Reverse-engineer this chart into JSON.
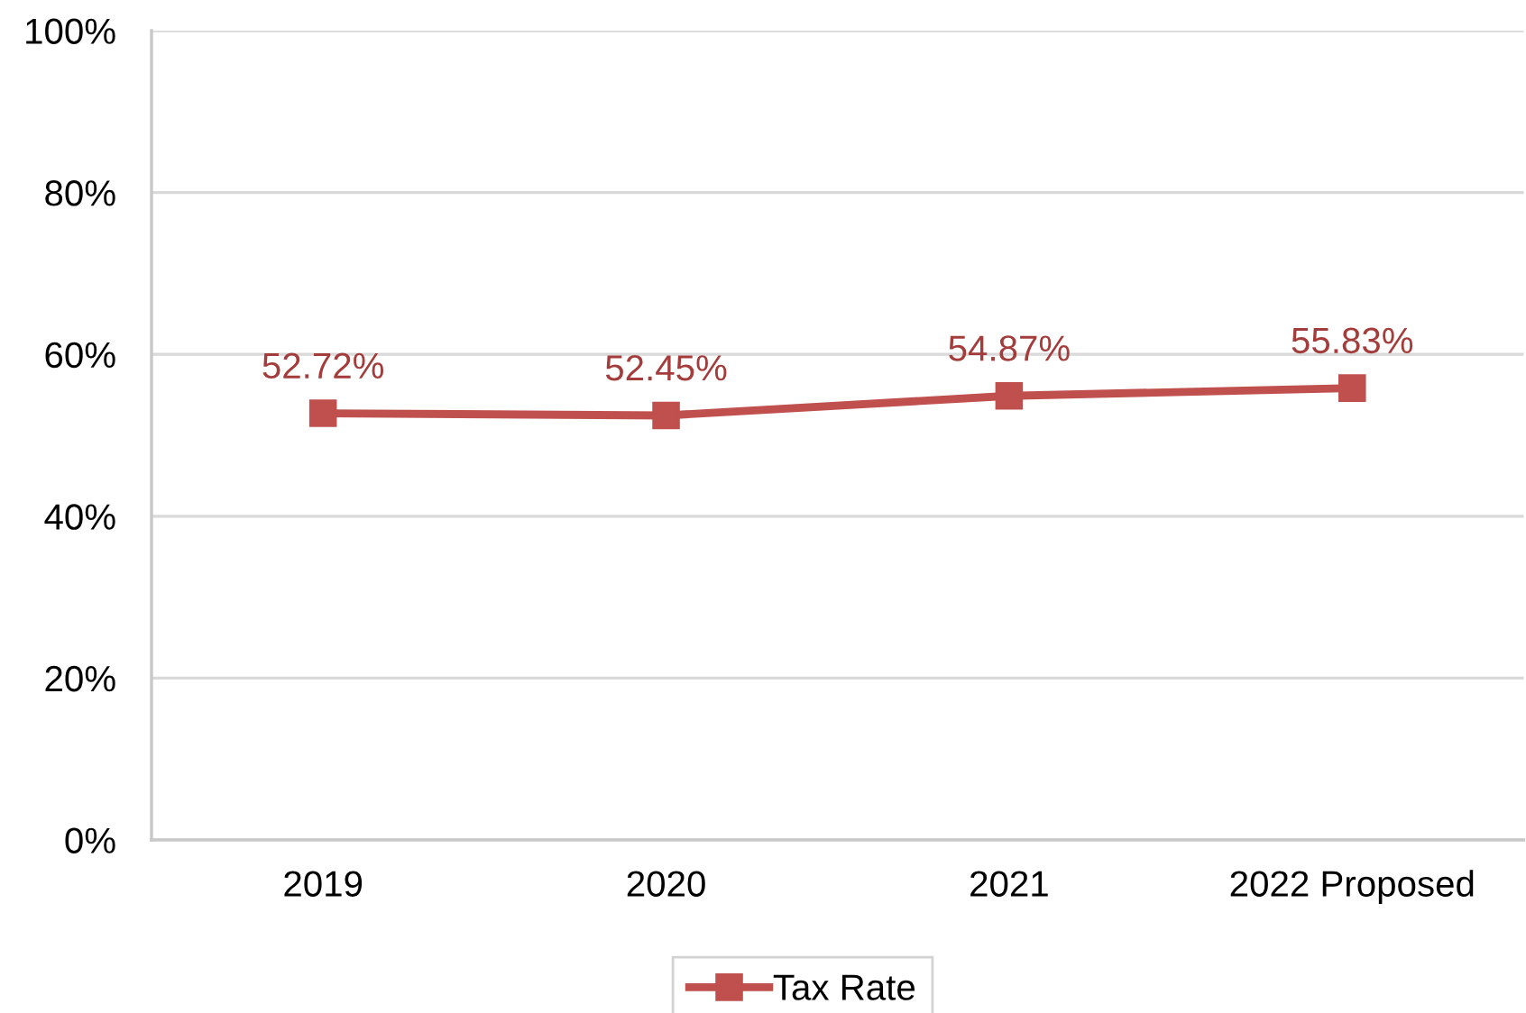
{
  "chart_data": {
    "type": "line",
    "categories": [
      "2019",
      "2020",
      "2021",
      "2022 Proposed"
    ],
    "series": [
      {
        "name": "Tax Rate",
        "color": "#c0504d",
        "values": [
          52.72,
          52.45,
          54.87,
          55.83
        ],
        "value_labels": [
          "52.72%",
          "52.45%",
          "54.87%",
          "55.83%"
        ]
      }
    ],
    "ylim": [
      0,
      100
    ],
    "yticks": [
      {
        "value": 0,
        "label": "0%"
      },
      {
        "value": 20,
        "label": "20%"
      },
      {
        "value": 40,
        "label": "40%"
      },
      {
        "value": 60,
        "label": "60%"
      },
      {
        "value": 80,
        "label": "80%"
      },
      {
        "value": 100,
        "label": "100%"
      }
    ],
    "grid": "y",
    "legend": "bottom",
    "marker": "square",
    "line_style": "solid"
  }
}
